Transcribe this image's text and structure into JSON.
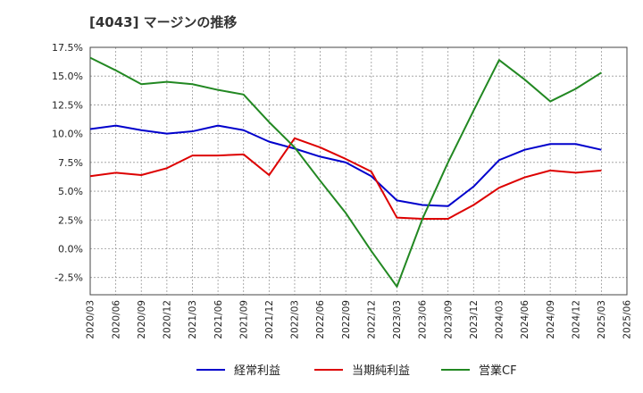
{
  "chart_data": {
    "type": "line",
    "title": "[4043]  マージンの推移",
    "xlabel": "",
    "ylabel": "",
    "ylim": [
      -4.0,
      17.5
    ],
    "yticks": [
      "17.5%",
      "15.0%",
      "12.5%",
      "10.0%",
      "7.5%",
      "5.0%",
      "2.5%",
      "0.0%",
      "-2.5%"
    ],
    "ytick_values": [
      17.5,
      15.0,
      12.5,
      10.0,
      7.5,
      5.0,
      2.5,
      0.0,
      -2.5
    ],
    "x": [
      "2020/03",
      "2020/06",
      "2020/09",
      "2020/12",
      "2021/03",
      "2021/06",
      "2021/09",
      "2021/12",
      "2022/03",
      "2022/06",
      "2022/09",
      "2022/12",
      "2023/03",
      "2023/06",
      "2023/09",
      "2023/12",
      "2024/03",
      "2024/06",
      "2024/09",
      "2024/12",
      "2025/03",
      "2025/06"
    ],
    "grid": true,
    "legend_position": "bottom",
    "series": [
      {
        "name": "経常利益",
        "color": "#0000cc",
        "values": [
          10.4,
          10.7,
          10.3,
          10.0,
          10.2,
          10.7,
          10.3,
          9.3,
          8.7,
          8.0,
          7.5,
          6.3,
          4.2,
          3.8,
          3.7,
          5.4,
          7.7,
          8.6,
          9.1,
          9.1,
          8.6,
          null
        ]
      },
      {
        "name": "当期純利益",
        "color": "#dd0000",
        "values": [
          6.3,
          6.6,
          6.4,
          7.0,
          8.1,
          8.1,
          8.2,
          6.4,
          9.6,
          8.8,
          7.8,
          6.7,
          2.7,
          2.6,
          2.6,
          3.8,
          5.3,
          6.2,
          6.8,
          6.6,
          6.8,
          null
        ]
      },
      {
        "name": "営業CF",
        "color": "#228822",
        "values": [
          16.6,
          15.5,
          14.3,
          14.5,
          14.3,
          13.8,
          13.4,
          11.0,
          8.8,
          5.9,
          3.1,
          -0.2,
          -3.3,
          2.6,
          7.5,
          12.0,
          16.4,
          14.7,
          12.8,
          13.9,
          15.3,
          null
        ]
      }
    ]
  }
}
